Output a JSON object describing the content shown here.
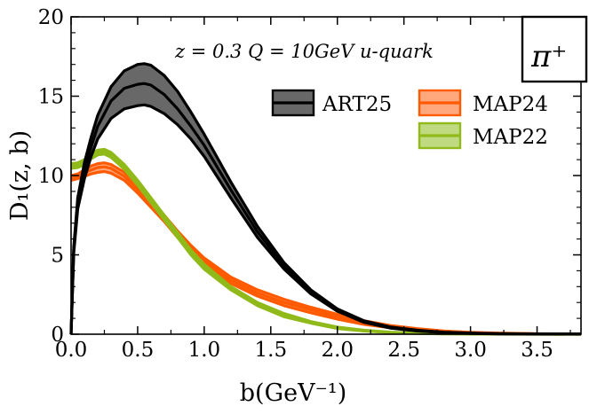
{
  "chart_data": {
    "type": "line",
    "title": "",
    "annotation": "z = 0.3   Q = 10GeV   u-quark",
    "badge": "π⁺",
    "xlabel": "b(GeV⁻¹)",
    "ylabel": "D₁(z, b)",
    "xlim": [
      0.0,
      3.83
    ],
    "ylim": [
      0,
      20
    ],
    "xticks": [
      "0.0",
      "0.5",
      "1.0",
      "1.5",
      "2.0",
      "2.5",
      "3.0",
      "3.5"
    ],
    "yticks": [
      "0",
      "5",
      "10",
      "15",
      "20"
    ],
    "grid": false,
    "legend_position": "top-right",
    "series": [
      {
        "name": "ART25",
        "color": "#000000",
        "fill": "#4d4d4d",
        "x": [
          0.0,
          0.02,
          0.05,
          0.1,
          0.15,
          0.2,
          0.3,
          0.4,
          0.5,
          0.55,
          0.6,
          0.7,
          0.8,
          0.9,
          1.0,
          1.2,
          1.4,
          1.6,
          1.8,
          2.0,
          2.2,
          2.4,
          2.6,
          2.8,
          3.0,
          3.2,
          3.5,
          3.83
        ],
        "upper": [
          0.0,
          5.5,
          8.6,
          10.8,
          12.4,
          13.8,
          15.6,
          16.6,
          17.0,
          17.05,
          16.95,
          16.3,
          15.3,
          14.0,
          12.6,
          9.6,
          6.8,
          4.5,
          2.8,
          1.6,
          0.85,
          0.45,
          0.25,
          0.13,
          0.07,
          0.04,
          0.02,
          0.01
        ],
        "central": [
          0.0,
          5.3,
          8.2,
          10.3,
          11.8,
          13.1,
          14.7,
          15.5,
          15.75,
          15.8,
          15.7,
          15.1,
          14.2,
          13.1,
          11.9,
          9.1,
          6.45,
          4.3,
          2.7,
          1.55,
          0.8,
          0.42,
          0.22,
          0.11,
          0.06,
          0.03,
          0.015,
          0.01
        ],
        "lower": [
          0.0,
          5.1,
          7.9,
          9.8,
          11.2,
          12.3,
          13.6,
          14.2,
          14.4,
          14.45,
          14.35,
          13.9,
          13.2,
          12.3,
          11.2,
          8.6,
          6.1,
          4.1,
          2.55,
          1.45,
          0.75,
          0.38,
          0.2,
          0.1,
          0.05,
          0.025,
          0.01,
          0.005
        ]
      },
      {
        "name": "MAP24",
        "color": "#ff5a00",
        "fill": "#ff9966",
        "x": [
          0.0,
          0.05,
          0.1,
          0.15,
          0.2,
          0.25,
          0.3,
          0.4,
          0.5,
          0.6,
          0.7,
          0.8,
          0.9,
          1.0,
          1.2,
          1.4,
          1.6,
          1.8,
          2.0,
          2.2,
          2.4,
          2.6,
          2.8,
          3.0,
          3.2,
          3.5,
          3.83
        ],
        "upper": [
          10.0,
          10.1,
          10.35,
          10.6,
          10.75,
          10.8,
          10.7,
          10.2,
          9.4,
          8.5,
          7.5,
          6.5,
          5.6,
          4.8,
          3.6,
          2.8,
          2.2,
          1.7,
          1.25,
          0.85,
          0.55,
          0.35,
          0.2,
          0.12,
          0.07,
          0.03,
          0.01
        ],
        "central": [
          9.85,
          9.95,
          10.15,
          10.35,
          10.5,
          10.55,
          10.45,
          9.95,
          9.15,
          8.25,
          7.3,
          6.3,
          5.4,
          4.6,
          3.4,
          2.6,
          2.0,
          1.55,
          1.1,
          0.75,
          0.48,
          0.3,
          0.17,
          0.1,
          0.05,
          0.02,
          0.01
        ],
        "lower": [
          9.7,
          9.8,
          9.95,
          10.1,
          10.2,
          10.25,
          10.15,
          9.7,
          8.9,
          8.0,
          7.1,
          6.1,
          5.2,
          4.4,
          3.2,
          2.4,
          1.8,
          1.35,
          0.95,
          0.62,
          0.4,
          0.24,
          0.14,
          0.08,
          0.04,
          0.015,
          0.005
        ]
      },
      {
        "name": "MAP22",
        "color": "#8fba1a",
        "fill": "#b5d36b",
        "x": [
          0.0,
          0.05,
          0.1,
          0.15,
          0.2,
          0.25,
          0.3,
          0.4,
          0.5,
          0.6,
          0.7,
          0.8,
          0.9,
          1.0,
          1.2,
          1.4,
          1.6,
          1.8,
          2.0,
          2.2,
          2.4,
          2.6,
          2.8,
          3.0,
          3.2,
          3.5,
          3.83
        ],
        "upper": [
          10.75,
          10.8,
          11.0,
          11.35,
          11.6,
          11.65,
          11.45,
          10.7,
          9.7,
          8.6,
          7.5,
          6.4,
          5.3,
          4.4,
          3.0,
          2.0,
          1.3,
          0.8,
          0.45,
          0.25,
          0.13,
          0.07,
          0.04,
          0.02,
          0.01,
          0.005,
          0.0
        ],
        "central": [
          10.6,
          10.65,
          10.85,
          11.2,
          11.45,
          11.5,
          11.3,
          10.55,
          9.55,
          8.45,
          7.35,
          6.25,
          5.15,
          4.25,
          2.9,
          1.9,
          1.2,
          0.75,
          0.4,
          0.22,
          0.11,
          0.06,
          0.03,
          0.015,
          0.008,
          0.003,
          0.0
        ],
        "lower": [
          10.45,
          10.5,
          10.7,
          11.05,
          11.3,
          11.35,
          11.15,
          10.4,
          9.4,
          8.3,
          7.2,
          6.1,
          5.0,
          4.1,
          2.8,
          1.8,
          1.1,
          0.7,
          0.36,
          0.2,
          0.1,
          0.05,
          0.025,
          0.012,
          0.006,
          0.002,
          0.0
        ]
      }
    ]
  }
}
